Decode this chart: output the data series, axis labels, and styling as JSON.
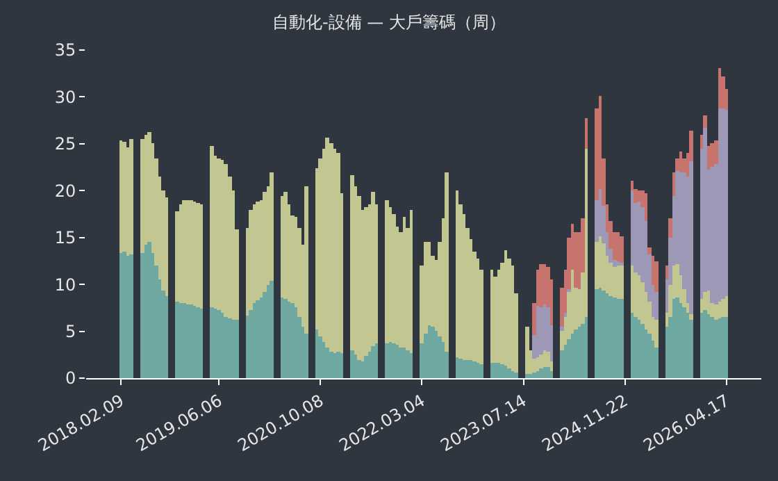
{
  "chart_data": {
    "type": "bar",
    "title": "自動化-設備 — 大戶籌碼（周）",
    "stacked": true,
    "categories": [
      "2018.02.09",
      null,
      null,
      null,
      null,
      null,
      null,
      null,
      null,
      null,
      null,
      null,
      null,
      null,
      null,
      null,
      null,
      null,
      null,
      null,
      null,
      null,
      null,
      null,
      null,
      null,
      null,
      null,
      "2019.06.06",
      null,
      null,
      null,
      null,
      null,
      null,
      null,
      null,
      null,
      null,
      null,
      null,
      null,
      null,
      null,
      null,
      null,
      null,
      null,
      null,
      null,
      null,
      null,
      null,
      null,
      null,
      null,
      null,
      "2020.10.08",
      null,
      null,
      null,
      null,
      null,
      null,
      null,
      null,
      null,
      null,
      null,
      null,
      null,
      null,
      null,
      null,
      null,
      null,
      null,
      null,
      null,
      null,
      null,
      null,
      null,
      null,
      null,
      null,
      "2022.03.04",
      null,
      null,
      null,
      null,
      null,
      null,
      null,
      null,
      null,
      null,
      null,
      null,
      null,
      null,
      null,
      null,
      null,
      null,
      null,
      null,
      null,
      null,
      null,
      null,
      null,
      null,
      null,
      null,
      "2023.07.14",
      null,
      null,
      null,
      null,
      null,
      null,
      null,
      null,
      null,
      null,
      null,
      null,
      null,
      null,
      null,
      null,
      null,
      null,
      null,
      null,
      null,
      null,
      null,
      null,
      null,
      null,
      null,
      null,
      "2024.11.22",
      null,
      null,
      null,
      null,
      null,
      null,
      null,
      null,
      null,
      null,
      null,
      null,
      null,
      null,
      null,
      null,
      null,
      null,
      null,
      null,
      null,
      null,
      null,
      null,
      null,
      null,
      null,
      null,
      "2026.04.17"
    ],
    "series": [
      {
        "color": "#6fa8a0",
        "values": [
          13.3,
          13.5,
          13,
          13.2,
          null,
          null,
          13.4,
          14.2,
          14.5,
          13.3,
          12,
          10.5,
          9.3,
          8.8,
          null,
          null,
          8.2,
          8,
          8,
          7.9,
          7.8,
          7.7,
          7.5,
          7.4,
          null,
          null,
          7.6,
          7.4,
          7.2,
          6.9,
          6.6,
          6.4,
          6.2,
          6.3,
          null,
          null,
          6.7,
          7.3,
          8,
          8.3,
          8.6,
          9.2,
          10,
          10.4,
          null,
          null,
          8.6,
          8.5,
          8.2,
          8,
          7.5,
          6.5,
          5.5,
          4.7,
          null,
          null,
          5.2,
          4.5,
          3.8,
          3.2,
          2.8,
          2.6,
          2.8,
          2.7,
          null,
          null,
          3,
          2.5,
          2,
          1.8,
          2.3,
          2.8,
          3.4,
          3.7,
          null,
          null,
          3.7,
          3.8,
          3.7,
          3.5,
          3.3,
          3.2,
          2.9,
          2.7,
          null,
          null,
          3.7,
          4.8,
          5.7,
          5.5,
          5,
          4.5,
          3.8,
          2.8,
          null,
          null,
          2.2,
          2.1,
          2,
          2,
          1.9,
          1.8,
          1.7,
          1.5,
          null,
          null,
          1.7,
          1.6,
          1.6,
          1.5,
          1.3,
          1.1,
          0.8,
          0.6,
          null,
          null,
          0.4,
          0.5,
          0.6,
          0.8,
          1,
          1.2,
          1.2,
          0.8,
          null,
          null,
          3,
          3.5,
          4.2,
          4.7,
          5.2,
          5.5,
          5.8,
          6.5,
          null,
          null,
          9.5,
          9.6,
          9.4,
          9,
          8.8,
          8.6,
          8.5,
          8.4,
          null,
          null,
          7,
          6.5,
          6.2,
          5.8,
          5.2,
          4.7,
          4,
          3.2,
          null,
          null,
          5.5,
          6.5,
          8.5,
          8.6,
          8,
          7.5,
          7,
          6.3,
          null,
          null,
          7,
          7.2,
          6.8,
          6.5,
          6.3,
          6.4,
          6.5,
          6.6
        ]
      },
      {
        "color": "#c2c690",
        "values": [
          12,
          11.7,
          11.6,
          12.3,
          null,
          null,
          12.1,
          11.8,
          11.8,
          11.7,
          11.5,
          11,
          10.7,
          10.5,
          null,
          null,
          9.6,
          10.5,
          11,
          11.1,
          11.2,
          11.2,
          11.2,
          11.1,
          null,
          null,
          17.2,
          16.4,
          16.3,
          16.4,
          16.2,
          15.1,
          13.8,
          9.5,
          null,
          null,
          9.3,
          10.7,
          10.6,
          10.5,
          10.4,
          10.6,
          10.5,
          11.6,
          null,
          null,
          10.9,
          11.3,
          10.3,
          9.3,
          9.7,
          9.5,
          8.8,
          15.8,
          null,
          null,
          17.2,
          19,
          20.6,
          22.4,
          22.2,
          21.9,
          21.2,
          17,
          null,
          null,
          18.7,
          18,
          17.5,
          16.2,
          15.9,
          15.7,
          16.4,
          14.8,
          null,
          null,
          15.3,
          14.4,
          13.8,
          12.7,
          12.2,
          14,
          13.1,
          15.3,
          null,
          null,
          8.3,
          9.7,
          8.8,
          7.5,
          7.6,
          10,
          13.2,
          19.2,
          null,
          null,
          17.8,
          16.4,
          15.5,
          14,
          12.9,
          11.7,
          11.1,
          10,
          null,
          null,
          9.9,
          9.2,
          9.9,
          10.8,
          12.3,
          11.7,
          11.2,
          8.4,
          null,
          null,
          5.1,
          2.5,
          1.5,
          1.4,
          1.5,
          1.8,
          1.6,
          1,
          null,
          null,
          2,
          3,
          5,
          6.8,
          4.5,
          4,
          5.5,
          18,
          null,
          null,
          5,
          5.5,
          5,
          4,
          3.5,
          3.2,
          3.5,
          3.6,
          null,
          null,
          5,
          4.7,
          4.8,
          4.5,
          4,
          3.5,
          2.5,
          3,
          null,
          null,
          1.5,
          3.5,
          3.5,
          3.5,
          3,
          2,
          1,
          0.5,
          null,
          null,
          1.5,
          2,
          2.5,
          1.5,
          1.5,
          1.8,
          2,
          2.2
        ]
      },
      {
        "color": "#9d98b5",
        "values": [
          0,
          0,
          0,
          0,
          null,
          null,
          0,
          0,
          0,
          0,
          0,
          0,
          0,
          0,
          null,
          null,
          0,
          0,
          0,
          0,
          0,
          0,
          0,
          0,
          null,
          null,
          0,
          0,
          0,
          0,
          0,
          0,
          0,
          0,
          null,
          null,
          0,
          0,
          0,
          0,
          0,
          0,
          0,
          0,
          null,
          null,
          0,
          0,
          0,
          0,
          0,
          0,
          0,
          0,
          null,
          null,
          0,
          0,
          0,
          0,
          0,
          0,
          0,
          0,
          null,
          null,
          0,
          0,
          0,
          0,
          0,
          0,
          0,
          0,
          null,
          null,
          0,
          0,
          0,
          0,
          0,
          0,
          0,
          0,
          null,
          null,
          0,
          0,
          0,
          0,
          0,
          0,
          0,
          0,
          null,
          null,
          0,
          0,
          0,
          0,
          0,
          0,
          0,
          0,
          null,
          null,
          0,
          0,
          0,
          0,
          0,
          0,
          0,
          0,
          null,
          null,
          0,
          0,
          2.5,
          5.5,
          5,
          4.8,
          4.8,
          3.9,
          null,
          null,
          0.5,
          0.5,
          0.3,
          0,
          0,
          0,
          0,
          0,
          null,
          null,
          4.5,
          5,
          4,
          2.5,
          1.5,
          0.8,
          0.5,
          0.3,
          null,
          null,
          8,
          7.5,
          7.8,
          8,
          7.5,
          5,
          3.5,
          3,
          null,
          null,
          3.5,
          5,
          7.5,
          10,
          11,
          12.5,
          13.5,
          16.3,
          null,
          null,
          16,
          17.5,
          13,
          14.5,
          15,
          20.5,
          20.2,
          19.8
        ]
      },
      {
        "color": "#c7736e",
        "values": [
          0,
          0,
          0,
          0,
          null,
          null,
          0,
          0,
          0,
          0,
          0,
          0,
          0,
          0,
          null,
          null,
          0,
          0,
          0,
          0,
          0,
          0,
          0,
          0,
          null,
          null,
          0,
          0,
          0,
          0,
          0,
          0,
          0,
          0,
          null,
          null,
          0,
          0,
          0,
          0,
          0,
          0,
          0,
          0,
          null,
          null,
          0,
          0,
          0,
          0,
          0,
          0,
          0,
          0,
          null,
          null,
          0,
          0,
          0,
          0,
          0,
          0,
          0,
          0,
          null,
          null,
          0,
          0,
          0,
          0,
          0,
          0,
          0,
          0,
          null,
          null,
          0,
          0,
          0,
          0,
          0,
          0,
          0,
          0,
          null,
          null,
          0,
          0,
          0,
          0,
          0,
          0,
          0,
          0,
          null,
          null,
          0,
          0,
          0,
          0,
          0,
          0,
          0,
          0,
          null,
          null,
          0,
          0,
          0,
          0,
          0,
          0,
          0,
          0,
          null,
          null,
          0,
          0,
          3.4,
          3.9,
          4.7,
          4.4,
          4.2,
          4.9,
          null,
          null,
          4.1,
          4.5,
          5.5,
          5,
          5.8,
          6,
          5.7,
          3.2,
          null,
          null,
          9.8,
          10,
          5,
          3,
          3,
          3,
          3,
          2.8,
          null,
          null,
          1,
          1.5,
          1.2,
          1.7,
          3,
          0.8,
          3,
          3.2,
          null,
          null,
          1.5,
          2,
          2.5,
          1.3,
          2.2,
          1.5,
          2.5,
          3.3,
          null,
          null,
          1.5,
          1.3,
          2.5,
          2.5,
          2.5,
          4.3,
          3.5,
          2.3
        ]
      }
    ],
    "ylim": [
      0,
      35
    ],
    "yticks": [
      0,
      5,
      10,
      15,
      20,
      25,
      30,
      35
    ]
  }
}
